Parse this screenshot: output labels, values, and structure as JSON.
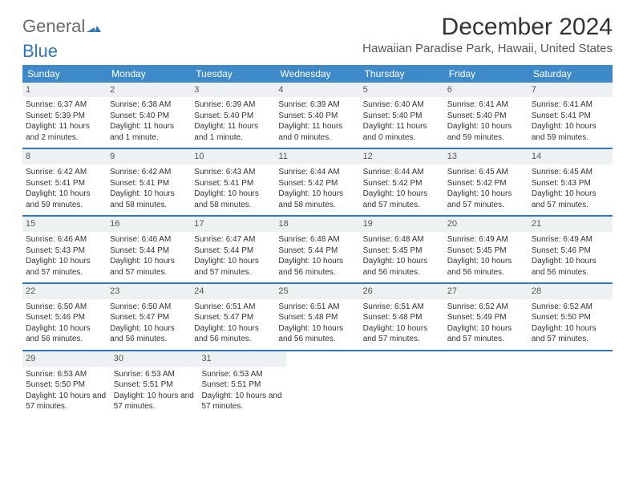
{
  "logo": {
    "text_general": "General",
    "text_blue": "Blue"
  },
  "title": "December 2024",
  "subtitle": "Hawaiian Paradise Park, Hawaii, United States",
  "colors": {
    "header_bg": "#3e8ac8",
    "header_text": "#ffffff",
    "accent": "#2f77b8",
    "daynum_bg": "#eef1f2",
    "body_text": "#333333",
    "logo_gray": "#6a6a6a"
  },
  "weekdays": [
    "Sunday",
    "Monday",
    "Tuesday",
    "Wednesday",
    "Thursday",
    "Friday",
    "Saturday"
  ],
  "weeks": [
    [
      {
        "n": "1",
        "sr": "6:37 AM",
        "ss": "5:39 PM",
        "dl": "11 hours and 2 minutes."
      },
      {
        "n": "2",
        "sr": "6:38 AM",
        "ss": "5:40 PM",
        "dl": "11 hours and 1 minute."
      },
      {
        "n": "3",
        "sr": "6:39 AM",
        "ss": "5:40 PM",
        "dl": "11 hours and 1 minute."
      },
      {
        "n": "4",
        "sr": "6:39 AM",
        "ss": "5:40 PM",
        "dl": "11 hours and 0 minutes."
      },
      {
        "n": "5",
        "sr": "6:40 AM",
        "ss": "5:40 PM",
        "dl": "11 hours and 0 minutes."
      },
      {
        "n": "6",
        "sr": "6:41 AM",
        "ss": "5:40 PM",
        "dl": "10 hours and 59 minutes."
      },
      {
        "n": "7",
        "sr": "6:41 AM",
        "ss": "5:41 PM",
        "dl": "10 hours and 59 minutes."
      }
    ],
    [
      {
        "n": "8",
        "sr": "6:42 AM",
        "ss": "5:41 PM",
        "dl": "10 hours and 59 minutes."
      },
      {
        "n": "9",
        "sr": "6:42 AM",
        "ss": "5:41 PM",
        "dl": "10 hours and 58 minutes."
      },
      {
        "n": "10",
        "sr": "6:43 AM",
        "ss": "5:41 PM",
        "dl": "10 hours and 58 minutes."
      },
      {
        "n": "11",
        "sr": "6:44 AM",
        "ss": "5:42 PM",
        "dl": "10 hours and 58 minutes."
      },
      {
        "n": "12",
        "sr": "6:44 AM",
        "ss": "5:42 PM",
        "dl": "10 hours and 57 minutes."
      },
      {
        "n": "13",
        "sr": "6:45 AM",
        "ss": "5:42 PM",
        "dl": "10 hours and 57 minutes."
      },
      {
        "n": "14",
        "sr": "6:45 AM",
        "ss": "5:43 PM",
        "dl": "10 hours and 57 minutes."
      }
    ],
    [
      {
        "n": "15",
        "sr": "6:46 AM",
        "ss": "5:43 PM",
        "dl": "10 hours and 57 minutes."
      },
      {
        "n": "16",
        "sr": "6:46 AM",
        "ss": "5:44 PM",
        "dl": "10 hours and 57 minutes."
      },
      {
        "n": "17",
        "sr": "6:47 AM",
        "ss": "5:44 PM",
        "dl": "10 hours and 57 minutes."
      },
      {
        "n": "18",
        "sr": "6:48 AM",
        "ss": "5:44 PM",
        "dl": "10 hours and 56 minutes."
      },
      {
        "n": "19",
        "sr": "6:48 AM",
        "ss": "5:45 PM",
        "dl": "10 hours and 56 minutes."
      },
      {
        "n": "20",
        "sr": "6:49 AM",
        "ss": "5:45 PM",
        "dl": "10 hours and 56 minutes."
      },
      {
        "n": "21",
        "sr": "6:49 AM",
        "ss": "5:46 PM",
        "dl": "10 hours and 56 minutes."
      }
    ],
    [
      {
        "n": "22",
        "sr": "6:50 AM",
        "ss": "5:46 PM",
        "dl": "10 hours and 56 minutes."
      },
      {
        "n": "23",
        "sr": "6:50 AM",
        "ss": "5:47 PM",
        "dl": "10 hours and 56 minutes."
      },
      {
        "n": "24",
        "sr": "6:51 AM",
        "ss": "5:47 PM",
        "dl": "10 hours and 56 minutes."
      },
      {
        "n": "25",
        "sr": "6:51 AM",
        "ss": "5:48 PM",
        "dl": "10 hours and 56 minutes."
      },
      {
        "n": "26",
        "sr": "6:51 AM",
        "ss": "5:48 PM",
        "dl": "10 hours and 57 minutes."
      },
      {
        "n": "27",
        "sr": "6:52 AM",
        "ss": "5:49 PM",
        "dl": "10 hours and 57 minutes."
      },
      {
        "n": "28",
        "sr": "6:52 AM",
        "ss": "5:50 PM",
        "dl": "10 hours and 57 minutes."
      }
    ],
    [
      {
        "n": "29",
        "sr": "6:53 AM",
        "ss": "5:50 PM",
        "dl": "10 hours and 57 minutes."
      },
      {
        "n": "30",
        "sr": "6:53 AM",
        "ss": "5:51 PM",
        "dl": "10 hours and 57 minutes."
      },
      {
        "n": "31",
        "sr": "6:53 AM",
        "ss": "5:51 PM",
        "dl": "10 hours and 57 minutes."
      },
      null,
      null,
      null,
      null
    ]
  ],
  "labels": {
    "sunrise": "Sunrise:",
    "sunset": "Sunset:",
    "daylight": "Daylight:"
  }
}
